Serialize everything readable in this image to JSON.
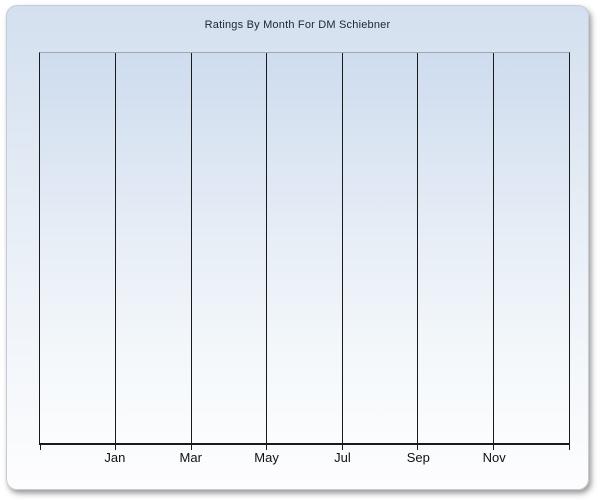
{
  "chart_data": {
    "type": "line",
    "title": "Ratings By Month For DM Schiebner",
    "categories": [
      "Jan",
      "Mar",
      "May",
      "Jul",
      "Sep",
      "Nov"
    ],
    "series": [],
    "plot_is_empty": true,
    "xlabel": "",
    "ylabel": "",
    "y_tick_labels": [],
    "grid": {
      "vertical": true,
      "horizontal": false
    },
    "legend": {
      "visible": false
    },
    "x_divisions": 7
  },
  "theme": {
    "panel_top": "#d4e0f0",
    "panel_bottom": "#fdfdfe",
    "panel_border": "#c6ccd6",
    "plot_top": "#cedcee",
    "plot_bottom": "#fbfcfd",
    "plot_top_border": "#a0a8b2",
    "grid_color": "#1a1a1a",
    "title_color": "#1c2533",
    "label_color": "#111111"
  }
}
